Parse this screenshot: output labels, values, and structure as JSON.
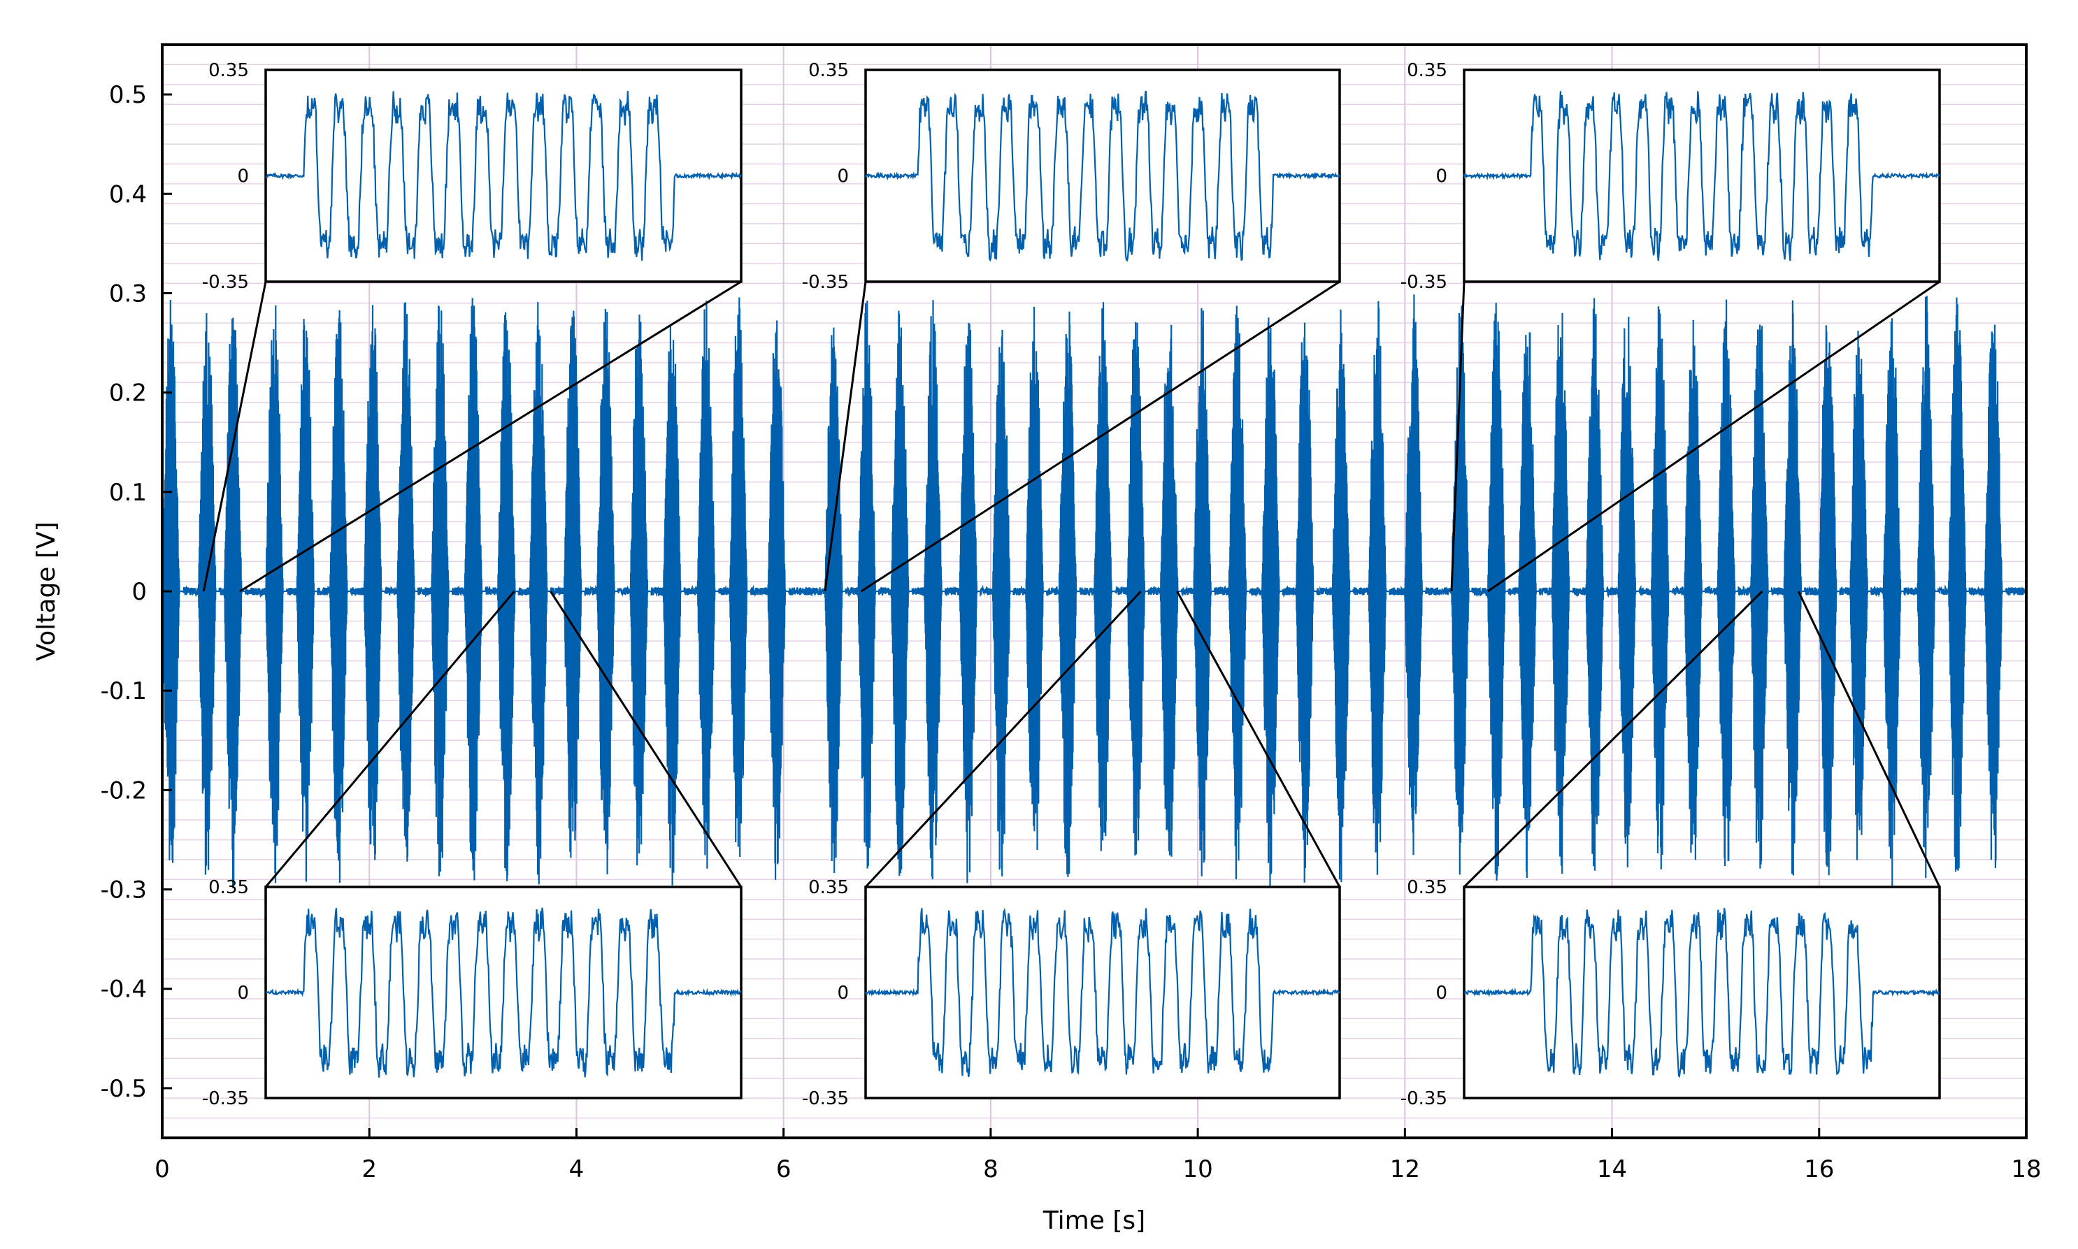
{
  "chart_data": {
    "type": "line",
    "title": "",
    "xlabel": "Time [s]",
    "ylabel": "Voltage [V]",
    "xlim": [
      0,
      18
    ],
    "ylim": [
      -0.55,
      0.55
    ],
    "grid": true,
    "x_ticks": [
      0,
      2,
      4,
      6,
      8,
      10,
      12,
      14,
      16,
      18
    ],
    "x_tick_labels": [
      "0",
      "2",
      "4",
      "6",
      "8",
      "10",
      "12",
      "14",
      "16",
      "18"
    ],
    "y_ticks": [
      0.5,
      0.4,
      0.3,
      0.2,
      0.1,
      0,
      -0.1,
      -0.2,
      -0.3,
      -0.4,
      -0.5
    ],
    "y_tick_labels": [
      "0.5",
      "0.4",
      "0.3",
      "0.2",
      "0.1",
      "0",
      "-0.1",
      "-0.2",
      "-0.3",
      "-0.4",
      "-0.5"
    ],
    "series_color": "#0060ad",
    "signal": {
      "description_free": true,
      "burst_starts_s": [
        0.0,
        0.35,
        0.6,
        1.0,
        1.3,
        1.62,
        1.95,
        2.27,
        2.6,
        2.92,
        3.24,
        3.55,
        3.88,
        4.2,
        4.52,
        4.84,
        5.17,
        5.48,
        5.85,
        6.4,
        6.72,
        7.04,
        7.36,
        7.7,
        8.02,
        8.34,
        8.66,
        9.0,
        9.32,
        9.64,
        9.96,
        10.3,
        10.62,
        10.95,
        11.3,
        11.65,
        12.0,
        12.45,
        12.8,
        13.1,
        13.42,
        13.75,
        14.06,
        14.38,
        14.7,
        15.02,
        15.34,
        15.66,
        16.0,
        16.3,
        16.62,
        16.95,
        17.25,
        17.6
      ],
      "burst_width_s": 0.2,
      "peak_amplitude_v": 0.3,
      "baseline_v": 0.0
    },
    "insets": [
      {
        "segment_s": [
          0.4,
          0.75
        ],
        "ylim": [
          -0.35,
          0.35
        ],
        "tick_labels": [
          "0.35",
          "0",
          "-0.35"
        ],
        "cycles": 13,
        "position": "top"
      },
      {
        "segment_s": [
          6.4,
          6.75
        ],
        "ylim": [
          -0.35,
          0.35
        ],
        "tick_labels": [
          "0.35",
          "0",
          "-0.35"
        ],
        "cycles": 13,
        "position": "top"
      },
      {
        "segment_s": [
          12.45,
          12.8
        ],
        "ylim": [
          -0.35,
          0.35
        ],
        "tick_labels": [
          "0.35",
          "0",
          "-0.35"
        ],
        "cycles": 13,
        "position": "top"
      },
      {
        "segment_s": [
          3.4,
          3.75
        ],
        "ylim": [
          -0.35,
          0.35
        ],
        "tick_labels": [
          "0.35",
          "0",
          "-0.35"
        ],
        "cycles": 13,
        "position": "bottom"
      },
      {
        "segment_s": [
          9.45,
          9.8
        ],
        "ylim": [
          -0.35,
          0.35
        ],
        "tick_labels": [
          "0.35",
          "0",
          "-0.35"
        ],
        "cycles": 13,
        "position": "bottom"
      },
      {
        "segment_s": [
          15.45,
          15.8
        ],
        "ylim": [
          -0.35,
          0.35
        ],
        "tick_labels": [
          "0.35",
          "0",
          "-0.35"
        ],
        "cycles": 13,
        "position": "bottom"
      }
    ]
  }
}
